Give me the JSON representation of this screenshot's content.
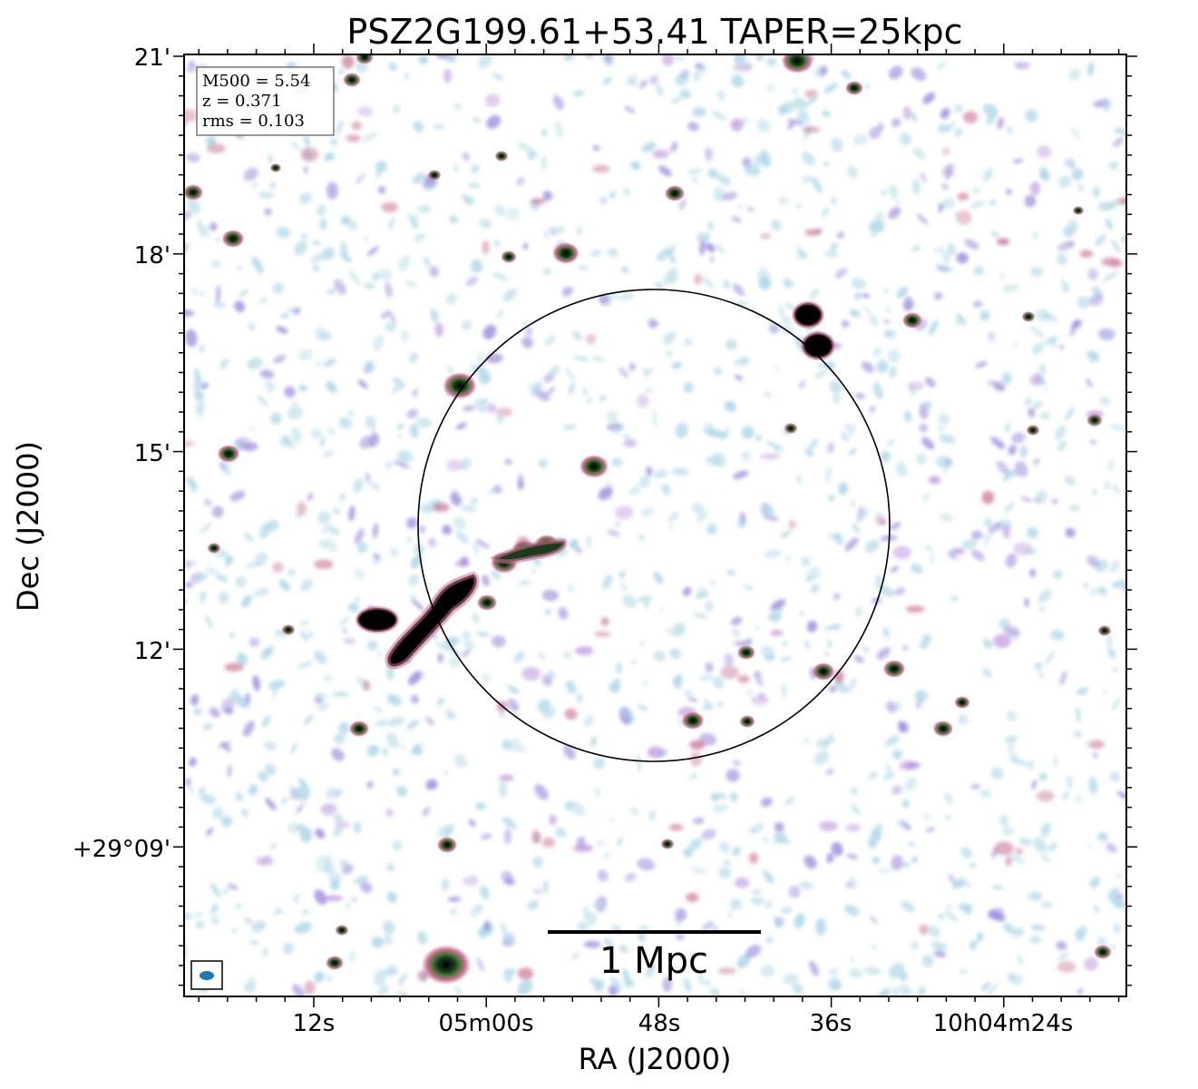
{
  "title": "PSZ2G199.61+53.41 TAPER=25kpc",
  "xlabel": "RA (J2000)",
  "ylabel": "Dec (J2000)",
  "x_ticks": [
    "12s",
    "05m00s",
    "48s",
    "36s",
    "10h04m24s"
  ],
  "y_ticks": [
    "21'",
    "18'",
    "15'",
    "12'",
    "+29°09'"
  ],
  "info_box": {
    "m500": "M500 = 5.54",
    "z": "z = 0.371",
    "rms": "rms = 0.103"
  },
  "scale_bar": {
    "label": "1 Mpc"
  },
  "colors": {
    "faint": "#a9d5e6",
    "mid": "#9f8fdc",
    "strong": "#c66a8f",
    "core": "#3f6a2f",
    "peak": "#000000",
    "beam": "#1f77b4"
  }
}
